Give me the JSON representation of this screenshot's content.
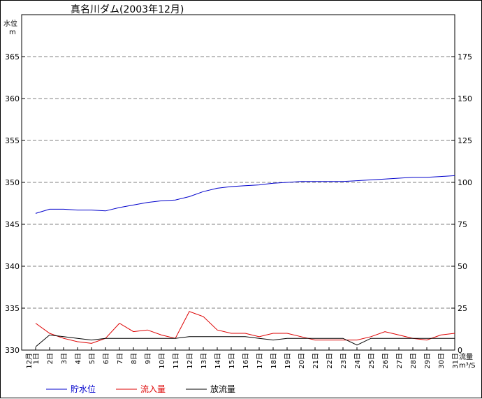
{
  "chart_data": {
    "type": "line",
    "title": "真名川ダム(2003年12月)",
    "ylabel_left": "水位",
    "ylabel_left_unit": "m",
    "ylabel_right": "流量",
    "ylabel_right_unit": "m³/S",
    "month_label": "12月",
    "ylim_left": [
      330,
      370
    ],
    "yticks_left": [
      330,
      335,
      340,
      345,
      350,
      355,
      360,
      365
    ],
    "ylim_right": [
      0,
      200
    ],
    "yticks_right": [
      0,
      25,
      50,
      75,
      100,
      125,
      150,
      175
    ],
    "grid": true,
    "legend_placement": "bottom",
    "categories": [
      "1日",
      "2日",
      "3日",
      "4日",
      "5日",
      "6日",
      "7日",
      "8日",
      "9日",
      "10日",
      "11日",
      "12日",
      "13日",
      "14日",
      "15日",
      "16日",
      "17日",
      "18日",
      "19日",
      "20日",
      "21日",
      "22日",
      "23日",
      "24日",
      "25日",
      "26日",
      "27日",
      "28日",
      "29日",
      "30日",
      "31日"
    ],
    "series": [
      {
        "name": "貯水位",
        "axis": "left",
        "color": "#0000cc",
        "values": [
          346.3,
          346.8,
          346.8,
          346.7,
          346.7,
          346.6,
          347.0,
          347.3,
          347.6,
          347.8,
          347.9,
          348.3,
          348.9,
          349.3,
          349.5,
          349.6,
          349.7,
          349.9,
          350.0,
          350.1,
          350.1,
          350.1,
          350.1,
          350.2,
          350.3,
          350.4,
          350.5,
          350.6,
          350.6,
          350.7,
          350.8
        ]
      },
      {
        "name": "流入量",
        "axis": "right",
        "color": "#dd0000",
        "values": [
          16,
          10,
          7,
          5,
          4,
          7,
          16,
          11,
          12,
          9,
          7,
          23,
          20,
          12,
          10,
          10,
          8,
          10,
          10,
          8,
          6,
          6,
          6,
          6,
          8,
          11,
          9,
          7,
          6,
          9,
          10
        ]
      },
      {
        "name": "放流量",
        "axis": "right",
        "color": "#000000",
        "values": [
          2,
          9,
          8,
          7,
          6,
          7,
          7,
          7,
          7,
          7,
          7,
          8,
          8,
          8,
          8,
          8,
          7,
          6,
          7,
          7,
          7,
          7,
          7,
          3,
          7,
          7,
          7,
          7,
          7,
          7,
          7
        ]
      }
    ]
  }
}
